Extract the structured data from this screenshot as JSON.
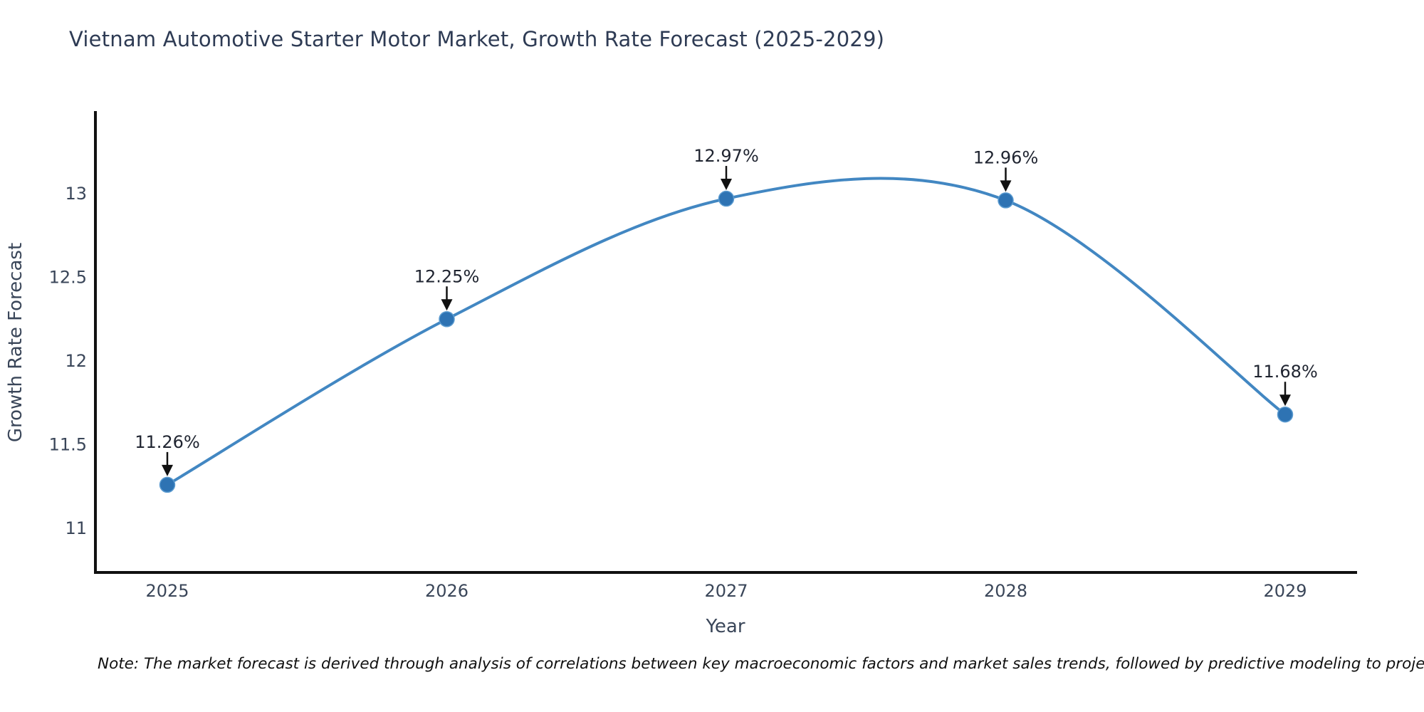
{
  "chart": {
    "title": "Vietnam Automotive Starter Motor Market, Growth Rate Forecast (2025-2029)",
    "note": "Note: The market forecast is derived through analysis of correlations between key macroeconomic factors and market sales trends, followed by predictive modeling to project future sales."
  },
  "chart_data": {
    "type": "line",
    "title": "Vietnam Automotive Starter Motor Market, Growth Rate Forecast (2025-2029)",
    "x": [
      "2025",
      "2026",
      "2027",
      "2028",
      "2029"
    ],
    "values": [
      11.26,
      12.25,
      12.97,
      12.96,
      11.68
    ],
    "point_labels": [
      "11.26%",
      "12.25%",
      "12.97%",
      "12.96%",
      "11.68%"
    ],
    "xlabel": "Year",
    "ylabel": "Growth Rate Forecast",
    "yticks": [
      11,
      11.5,
      12,
      12.5,
      13
    ],
    "ytick_labels": [
      "11",
      "11.5",
      "12",
      "12.5",
      "13"
    ],
    "ylim": [
      10.74,
      13.48
    ],
    "line_shape": "spline",
    "grid": false,
    "legend": "none",
    "colors": {
      "line": "#4287c2",
      "marker": "#2e73b3",
      "marker_edge": "#5b9bd0",
      "spine": "#111111",
      "annotation_arrow": "#111111"
    }
  }
}
